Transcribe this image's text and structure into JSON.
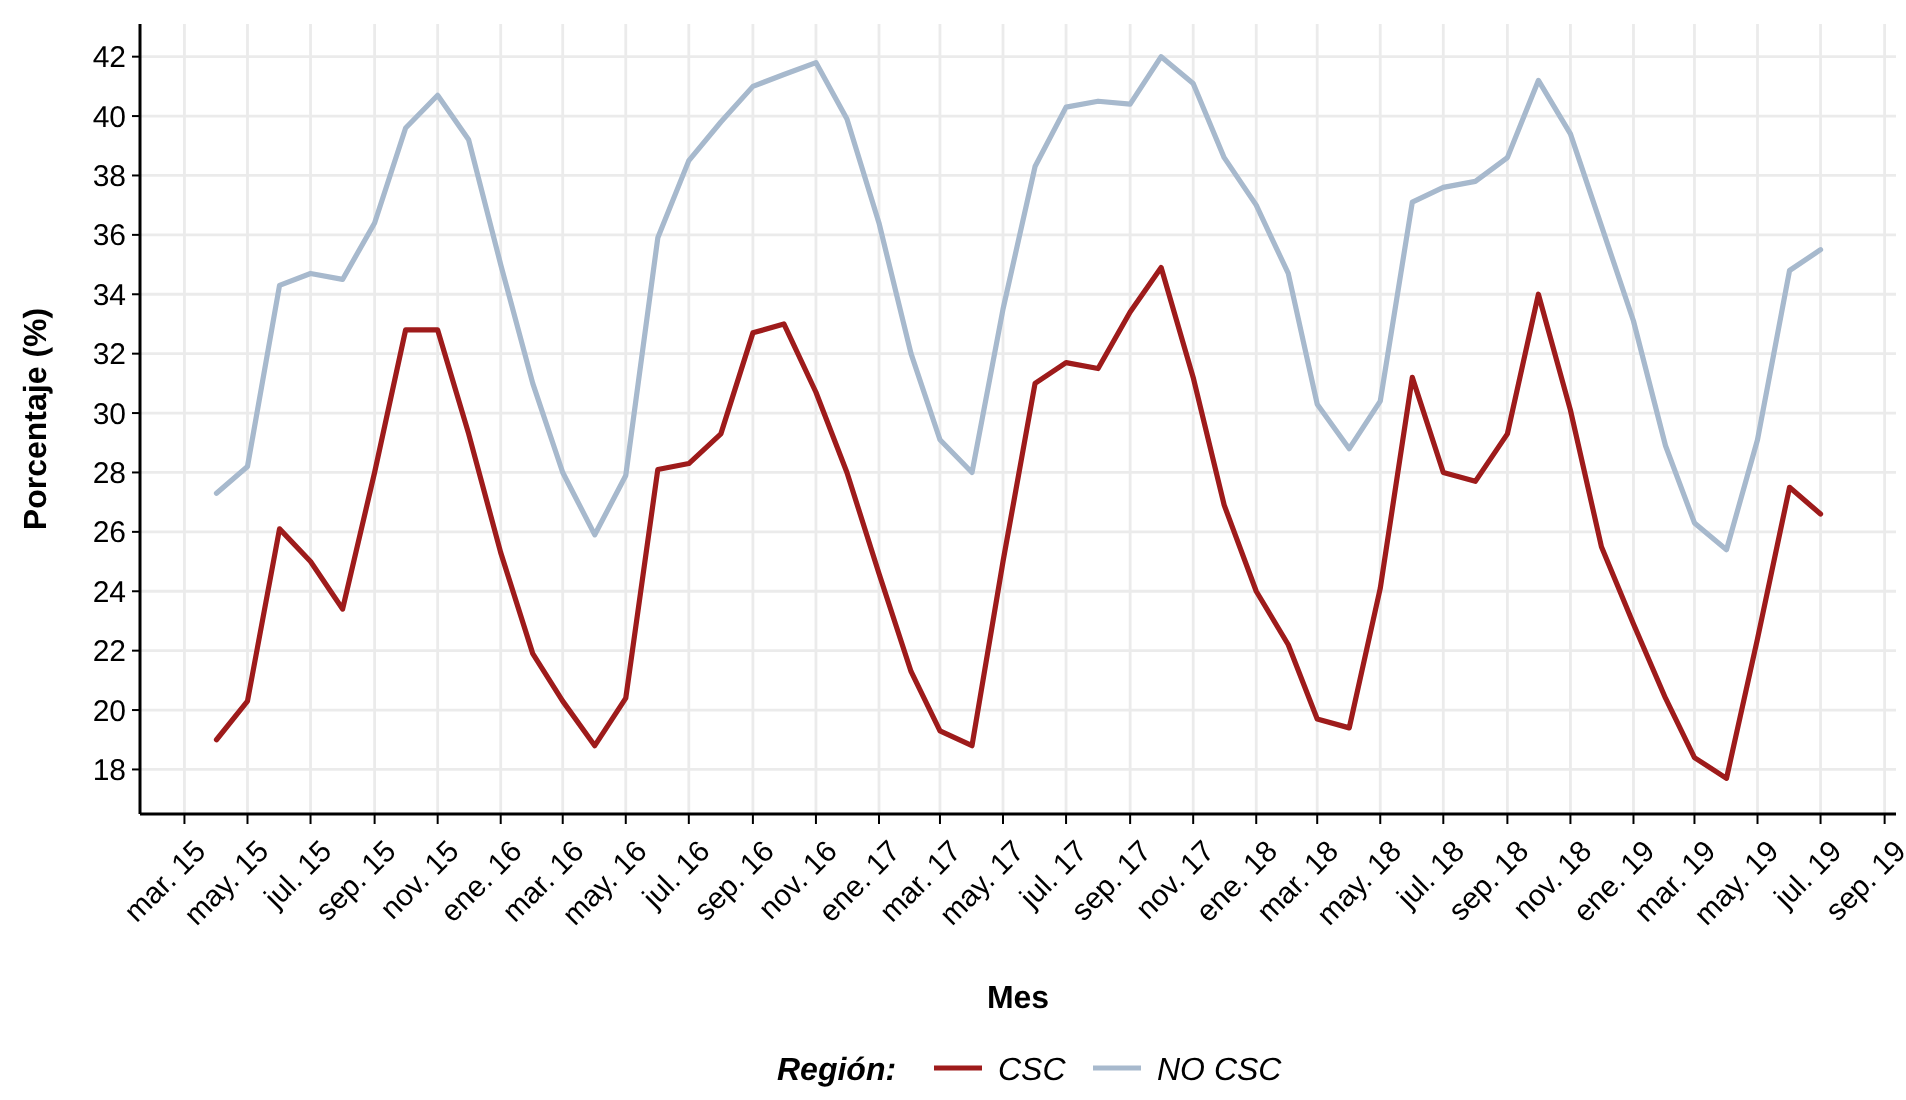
{
  "chart_data": {
    "type": "line",
    "xlabel": "Mes",
    "ylabel": "Porcentaje (%)",
    "legend_title": "Región:",
    "legend": "bottom",
    "grid": true,
    "line_style": "solid",
    "marker": "none",
    "x": [
      "2015-04",
      "2015-05",
      "2015-06",
      "2015-07",
      "2015-08",
      "2015-09",
      "2015-10",
      "2015-11",
      "2015-12",
      "2016-01",
      "2016-02",
      "2016-03",
      "2016-04",
      "2016-05",
      "2016-06",
      "2016-07",
      "2016-08",
      "2016-09",
      "2016-10",
      "2016-11",
      "2016-12",
      "2017-01",
      "2017-02",
      "2017-03",
      "2017-04",
      "2017-05",
      "2017-06",
      "2017-07",
      "2017-08",
      "2017-09",
      "2017-10",
      "2017-11",
      "2017-12",
      "2018-01",
      "2018-02",
      "2018-03",
      "2018-04",
      "2018-05",
      "2018-06",
      "2018-07",
      "2018-08",
      "2018-09",
      "2018-10",
      "2018-11",
      "2018-12",
      "2019-01",
      "2019-02",
      "2019-03",
      "2019-04",
      "2019-05",
      "2019-06",
      "2019-07"
    ],
    "series": [
      {
        "name": "CSC",
        "color": "#9e1b1b",
        "values": [
          19.0,
          20.3,
          26.1,
          25.0,
          23.4,
          28.0,
          32.8,
          32.8,
          29.3,
          25.3,
          21.9,
          20.3,
          18.8,
          20.4,
          28.1,
          28.3,
          29.3,
          32.7,
          33.0,
          30.7,
          28.0,
          24.6,
          21.3,
          19.3,
          18.8,
          25.0,
          31.0,
          31.7,
          31.5,
          33.4,
          34.9,
          31.2,
          26.9,
          24.0,
          22.2,
          19.7,
          19.4,
          24.1,
          31.2,
          28.0,
          27.7,
          29.3,
          34.0,
          30.1,
          25.5,
          22.9,
          20.4,
          18.4,
          17.7,
          22.4,
          27.5,
          26.6
        ]
      },
      {
        "name": "NO CSC",
        "color": "#a7b9cd",
        "values": [
          27.3,
          28.2,
          34.3,
          34.7,
          34.5,
          36.4,
          39.6,
          40.7,
          39.2,
          35.0,
          31.0,
          28.0,
          25.9,
          27.9,
          35.9,
          38.5,
          39.8,
          41.0,
          41.4,
          41.8,
          39.9,
          36.4,
          32.0,
          29.1,
          28.0,
          33.5,
          38.3,
          40.3,
          40.5,
          40.4,
          42.0,
          41.1,
          38.6,
          37.0,
          34.7,
          30.3,
          28.8,
          30.4,
          37.1,
          37.6,
          37.8,
          38.6,
          41.2,
          39.4,
          36.3,
          33.1,
          28.9,
          26.3,
          25.4,
          29.1,
          34.8,
          35.5
        ]
      }
    ],
    "xlim": [
      "2015-01-17",
      "2019-09-12"
    ],
    "xticks": [
      {
        "value": "2015-03",
        "label": "mar. 15"
      },
      {
        "value": "2015-05",
        "label": "may. 15"
      },
      {
        "value": "2015-07",
        "label": "jul. 15"
      },
      {
        "value": "2015-09",
        "label": "sep. 15"
      },
      {
        "value": "2015-11",
        "label": "nov. 15"
      },
      {
        "value": "2016-01",
        "label": "ene. 16"
      },
      {
        "value": "2016-03",
        "label": "mar. 16"
      },
      {
        "value": "2016-05",
        "label": "may. 16"
      },
      {
        "value": "2016-07",
        "label": "jul. 16"
      },
      {
        "value": "2016-09",
        "label": "sep. 16"
      },
      {
        "value": "2016-11",
        "label": "nov. 16"
      },
      {
        "value": "2017-01",
        "label": "ene. 17"
      },
      {
        "value": "2017-03",
        "label": "mar. 17"
      },
      {
        "value": "2017-05",
        "label": "may. 17"
      },
      {
        "value": "2017-07",
        "label": "jul. 17"
      },
      {
        "value": "2017-09",
        "label": "sep. 17"
      },
      {
        "value": "2017-11",
        "label": "nov. 17"
      },
      {
        "value": "2018-01",
        "label": "ene. 18"
      },
      {
        "value": "2018-03",
        "label": "mar. 18"
      },
      {
        "value": "2018-05",
        "label": "may. 18"
      },
      {
        "value": "2018-07",
        "label": "jul. 18"
      },
      {
        "value": "2018-09",
        "label": "sep. 18"
      },
      {
        "value": "2018-11",
        "label": "nov. 18"
      },
      {
        "value": "2019-01",
        "label": "ene. 19"
      },
      {
        "value": "2019-03",
        "label": "mar. 19"
      },
      {
        "value": "2019-05",
        "label": "may. 19"
      },
      {
        "value": "2019-07",
        "label": "jul. 19"
      },
      {
        "value": "2019-09",
        "label": "sep. 19"
      }
    ],
    "ylim": [
      16.5,
      43.1
    ],
    "yticks": [
      18,
      20,
      22,
      24,
      26,
      28,
      30,
      32,
      34,
      36,
      38,
      40,
      42
    ]
  }
}
